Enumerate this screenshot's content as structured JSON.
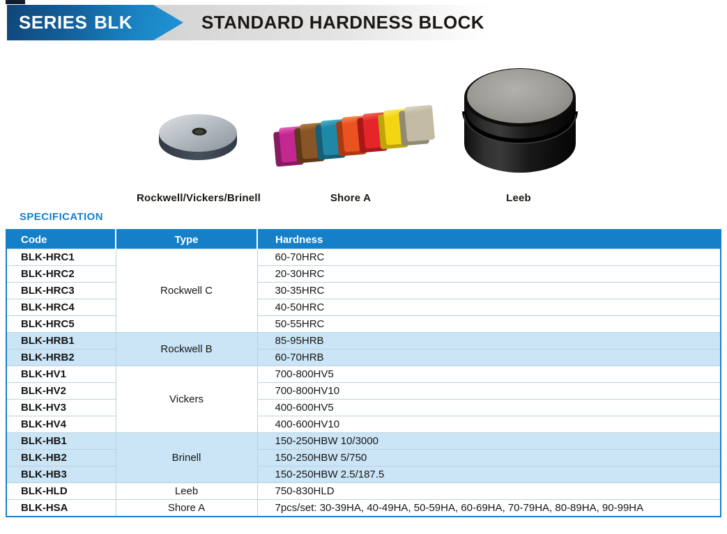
{
  "header": {
    "series_label": "SERIES BLK",
    "title": "STANDARD HARDNESS BLOCK"
  },
  "products": [
    {
      "name": "rockwell-vickers-brinell-disc",
      "label": "Rockwell/Vickers/Brinell"
    },
    {
      "name": "shore-a-block-set",
      "label": "Shore A"
    },
    {
      "name": "leeb-block",
      "label": "Leeb"
    }
  ],
  "shore_block_colors": [
    {
      "main": "#c32790",
      "dark": "#871b63",
      "light": "#e668bd"
    },
    {
      "main": "#8a5526",
      "dark": "#5c3917",
      "light": "#b57c3e"
    },
    {
      "main": "#1e88a6",
      "dark": "#136076",
      "light": "#4fb3cc"
    },
    {
      "main": "#ea5320",
      "dark": "#ab3a13",
      "light": "#f58a4e"
    },
    {
      "main": "#e62528",
      "dark": "#a8181b",
      "light": "#f26a5e"
    },
    {
      "main": "#f4d511",
      "dark": "#bda50c",
      "light": "#faeb6a"
    },
    {
      "main": "#c2baa2",
      "dark": "#918a73",
      "light": "#ddd8c4"
    }
  ],
  "specification": {
    "heading": "SPECIFICATION",
    "columns": [
      "Code",
      "Type",
      "Hardness"
    ],
    "groups": [
      {
        "type": "Rockwell C",
        "highlight": false,
        "rows": [
          {
            "code": "BLK-HRC1",
            "hardness": "60-70HRC"
          },
          {
            "code": "BLK-HRC2",
            "hardness": "20-30HRC"
          },
          {
            "code": "BLK-HRC3",
            "hardness": "30-35HRC"
          },
          {
            "code": "BLK-HRC4",
            "hardness": "40-50HRC"
          },
          {
            "code": "BLK-HRC5",
            "hardness": "50-55HRC"
          }
        ]
      },
      {
        "type": "Rockwell B",
        "highlight": true,
        "rows": [
          {
            "code": "BLK-HRB1",
            "hardness": "85-95HRB"
          },
          {
            "code": "BLK-HRB2",
            "hardness": "60-70HRB"
          }
        ]
      },
      {
        "type": "Vickers",
        "highlight": false,
        "rows": [
          {
            "code": "BLK-HV1",
            "hardness": "700-800HV5"
          },
          {
            "code": "BLK-HV2",
            "hardness": "700-800HV10"
          },
          {
            "code": "BLK-HV3",
            "hardness": "400-600HV5"
          },
          {
            "code": "BLK-HV4",
            "hardness": "400-600HV10"
          }
        ]
      },
      {
        "type": "Brinell",
        "highlight": true,
        "rows": [
          {
            "code": "BLK-HB1",
            "hardness": "150-250HBW 10/3000"
          },
          {
            "code": "BLK-HB2",
            "hardness": "150-250HBW 5/750"
          },
          {
            "code": "BLK-HB3",
            "hardness": "150-250HBW 2.5/187.5"
          }
        ]
      },
      {
        "type": "Leeb",
        "highlight": false,
        "rows": [
          {
            "code": "BLK-HLD",
            "hardness": "750-830HLD"
          }
        ]
      },
      {
        "type": "Shore A",
        "highlight": false,
        "rows": [
          {
            "code": "BLK-HSA",
            "hardness": "7pcs/set: 30-39HA, 40-49HA, 50-59HA, 60-69HA, 70-79HA, 80-89HA, 90-99HA"
          }
        ]
      }
    ]
  },
  "colors": {
    "accent_blue": "#1580c8",
    "banner_gradient_dark": "#0f4577",
    "banner_gradient_light": "#2093d4",
    "header_gray_bar": "#d3d3d3",
    "table_highlight_row": "#cbe5f6",
    "table_grid_line": "#b9d2e0"
  }
}
